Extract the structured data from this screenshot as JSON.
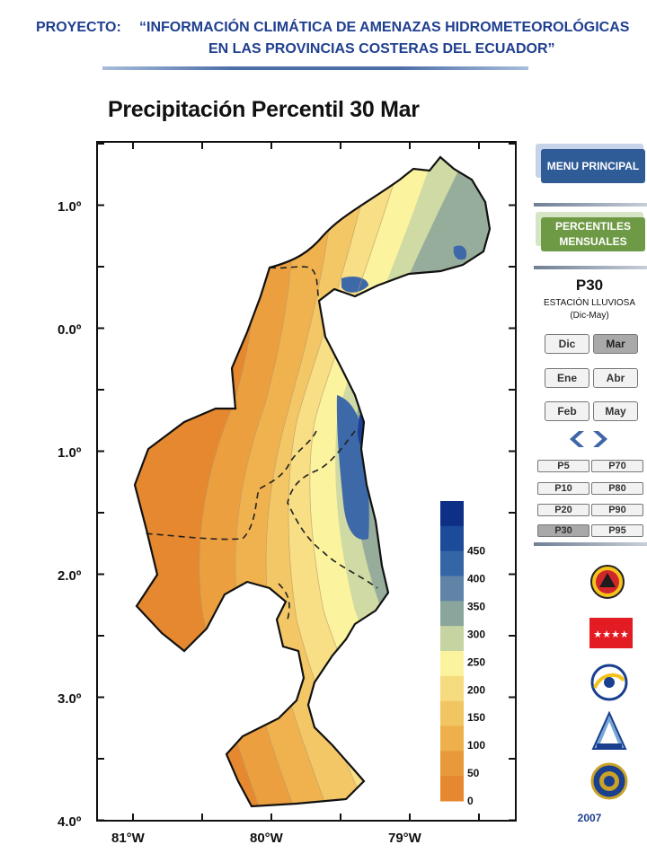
{
  "header": {
    "label": "PROYECTO:",
    "line1": "“INFORMACIÓN CLIMÁTICA DE AMENAZAS HIDROMETEOROLÓGICAS",
    "line2": "EN LAS PROVINCIAS COSTERAS DEL ECUADOR”"
  },
  "map": {
    "title": "Precipitación Percentil 30 Mar",
    "lat_labels": [
      "1.0º",
      "0.0º",
      "1.0º",
      "2.0º",
      "3.0º",
      "4.0º"
    ],
    "lon_labels": [
      "81°W",
      "80°W",
      "79°W"
    ],
    "legend": {
      "labels": [
        "450",
        "400",
        "350",
        "300",
        "250",
        "200",
        "150",
        "100",
        "50",
        "0"
      ],
      "colors": [
        "#0d2f86",
        "#1c4b9a",
        "#3466a6",
        "#5f84a8",
        "#8aa69c",
        "#c5d4a1",
        "#fbf39e",
        "#f7dc7f",
        "#f2c563",
        "#eeb04a",
        "#e89a3a",
        "#e5882f"
      ]
    }
  },
  "sidebar": {
    "menu_principal": "MENU PRINCIPAL",
    "percentiles": "PERCENTILES MENSUALES",
    "percentile_title": "P30",
    "season": "ESTACIÓN LLUVIOSA",
    "season_range": "(Dic-May)",
    "months": [
      "Dic",
      "Mar",
      "Ene",
      "Abr",
      "Feb",
      "May"
    ],
    "active_month": "Mar",
    "percentile_buttons": [
      "P5",
      "P70",
      "P10",
      "P80",
      "P20",
      "P90",
      "P30",
      "P95"
    ],
    "active_percentile": "P30",
    "year": "2007",
    "logo_flag_color": "#e31b23",
    "menu_color": "#2f5b96",
    "percentiles_color": "#6f9a45"
  }
}
